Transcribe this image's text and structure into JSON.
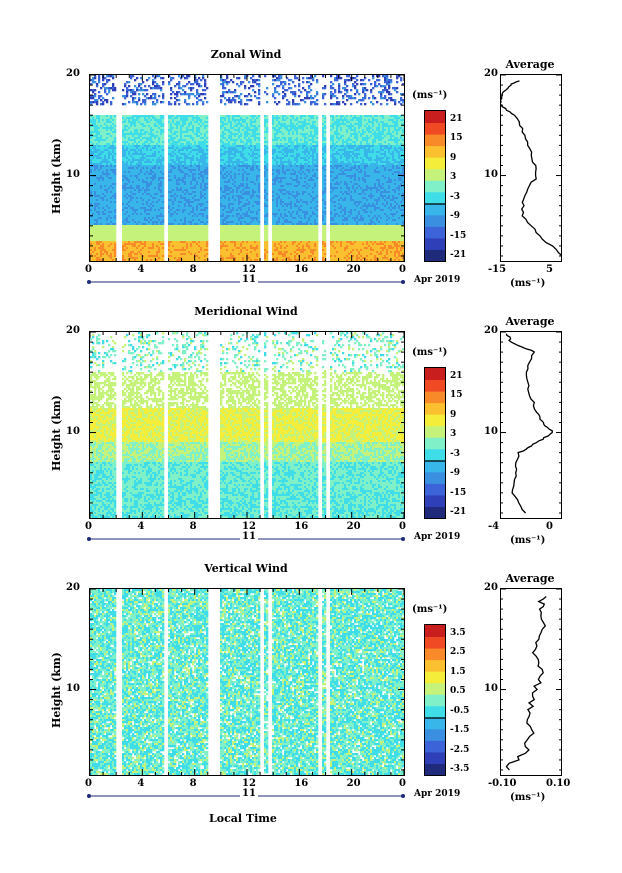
{
  "x_label": "Local Time",
  "panels": [
    {
      "title": "Zonal Wind",
      "ylabel": "Height (km)",
      "unit": "(ms⁻¹)",
      "date_day": "11",
      "date_label": "Apr 2019",
      "x_ticks": [
        "0",
        "4",
        "8",
        "12",
        "16",
        "20",
        "0"
      ],
      "y_ticks": [
        "20",
        "10"
      ],
      "colorbar_ticks": [
        "21",
        "15",
        "9",
        "3",
        "-3",
        "-9",
        "-15",
        "-21"
      ],
      "avg_title": "Average",
      "avg_unit": "(ms⁻¹)",
      "avg_x_ticks": [
        "-15",
        "5"
      ],
      "avg_y_ticks": [
        "20",
        "10"
      ]
    },
    {
      "title": "Meridional Wind",
      "ylabel": "Height (km)",
      "unit": "(ms⁻¹)",
      "date_day": "11",
      "date_label": "Apr 2019",
      "x_ticks": [
        "0",
        "4",
        "8",
        "12",
        "16",
        "20",
        "0"
      ],
      "y_ticks": [
        "20",
        "10"
      ],
      "colorbar_ticks": [
        "21",
        "15",
        "9",
        "3",
        "-3",
        "-9",
        "-15",
        "-21"
      ],
      "avg_title": "Average",
      "avg_unit": "(ms⁻¹)",
      "avg_x_ticks": [
        "-4",
        "0"
      ],
      "avg_y_ticks": [
        "20",
        "10"
      ]
    },
    {
      "title": "Vertical Wind",
      "ylabel": "Height (km)",
      "unit": "(ms⁻¹)",
      "date_day": "11",
      "date_label": "Apr 2019",
      "x_ticks": [
        "0",
        "4",
        "8",
        "12",
        "16",
        "20",
        "0"
      ],
      "y_ticks": [
        "20",
        "10"
      ],
      "colorbar_ticks": [
        "3.5",
        "2.5",
        "1.5",
        "0.5",
        "-0.5",
        "-1.5",
        "-2.5",
        "-3.5"
      ],
      "avg_title": "Average",
      "avg_unit": "(ms⁻¹)",
      "avg_x_ticks": [
        "-0.10",
        "0.10"
      ],
      "avg_y_ticks": [
        "20",
        "10"
      ]
    }
  ],
  "colors": {
    "scale": [
      "#1f2a7a",
      "#2f3fb8",
      "#3d63d8",
      "#3a8fe0",
      "#38b6ea",
      "#3fdde8",
      "#7ff0c8",
      "#c4f27a",
      "#f4ee3a",
      "#fbc030",
      "#f88a2a",
      "#ef4a24",
      "#c81e1e"
    ]
  },
  "chart_data": [
    {
      "type": "heatmap",
      "title": "Zonal Wind",
      "xlabel": "Local Time",
      "ylabel": "Height (km)",
      "xlim": [
        0,
        24
      ],
      "ylim": [
        1.5,
        20
      ],
      "colorbar": {
        "label": "(ms⁻¹)",
        "range": [
          -24,
          24
        ]
      },
      "data_gaps_hours": [
        [
          2.0,
          2.4
        ],
        [
          5.7,
          6.0
        ],
        [
          9.0,
          10.0
        ],
        [
          13.0,
          13.3
        ],
        [
          13.6,
          13.9
        ],
        [
          17.5,
          17.8
        ],
        [
          18.1,
          18.4
        ]
      ],
      "profile": {
        "title": "Average",
        "xlabel": "(ms⁻¹)",
        "xlim": [
          -15,
          5
        ],
        "heights": [
          2,
          4,
          6,
          8,
          10,
          12,
          14,
          16,
          17,
          18,
          19,
          19.5
        ],
        "values": [
          5.5,
          -2,
          -8,
          -7.5,
          -3,
          -4.5,
          -7,
          -10.5,
          -15,
          -15,
          -12,
          -8
        ]
      }
    },
    {
      "type": "heatmap",
      "title": "Meridional Wind",
      "xlabel": "Local Time",
      "ylabel": "Height (km)",
      "xlim": [
        0,
        24
      ],
      "ylim": [
        1.5,
        20
      ],
      "colorbar": {
        "label": "(ms⁻¹)",
        "range": [
          -24,
          24
        ]
      },
      "data_gaps_hours": [
        [
          2.0,
          2.4
        ],
        [
          5.7,
          6.0
        ],
        [
          9.0,
          10.0
        ],
        [
          13.0,
          13.3
        ],
        [
          13.6,
          13.9
        ],
        [
          17.5,
          17.8
        ],
        [
          18.1,
          18.4
        ]
      ],
      "profile": {
        "title": "Average",
        "xlabel": "(ms⁻¹)",
        "xlim": [
          -4,
          1
        ],
        "heights": [
          2,
          4,
          6,
          8,
          9,
          10,
          11,
          12,
          14,
          16,
          18,
          19,
          20
        ],
        "values": [
          -2,
          -3,
          -2.8,
          -2.5,
          -1,
          0.3,
          -0.5,
          -1,
          -1.6,
          -2,
          -1.2,
          -3.2,
          -3.5
        ]
      }
    },
    {
      "type": "heatmap",
      "title": "Vertical Wind",
      "xlabel": "Local Time",
      "ylabel": "Height (km)",
      "xlim": [
        0,
        24
      ],
      "ylim": [
        1.5,
        20
      ],
      "colorbar": {
        "label": "(ms⁻¹)",
        "range": [
          -4,
          4
        ]
      },
      "data_gaps_hours": [
        [
          2.0,
          2.4
        ],
        [
          5.7,
          6.0
        ],
        [
          9.0,
          10.0
        ],
        [
          13.0,
          13.3
        ],
        [
          13.6,
          13.9
        ],
        [
          17.5,
          17.8
        ],
        [
          18.1,
          18.4
        ]
      ],
      "profile": {
        "title": "Average",
        "xlabel": "(ms⁻¹)",
        "xlim": [
          -0.12,
          0.12
        ],
        "heights": [
          2,
          4,
          6,
          8,
          10,
          12,
          14,
          16,
          18,
          19.5
        ],
        "values": [
          -0.1,
          -0.02,
          0.0,
          -0.01,
          0.02,
          0.04,
          0.01,
          0.05,
          0.03,
          0.06
        ]
      }
    }
  ]
}
